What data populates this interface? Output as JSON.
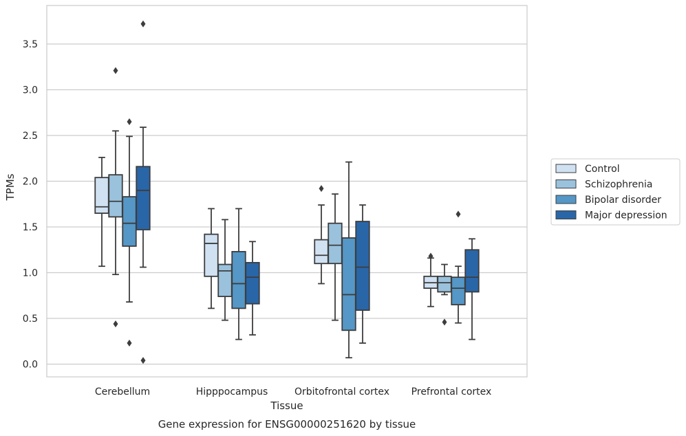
{
  "chart_data": {
    "type": "box",
    "title": "",
    "caption": "Gene expression for ENSG00000251620 by tissue",
    "xlabel": "Tissue",
    "ylabel": "TPMs",
    "ylim": [
      -0.13,
      3.92
    ],
    "yticks": [
      0.0,
      0.5,
      1.0,
      1.5,
      2.0,
      2.5,
      3.0,
      3.5
    ],
    "ytick_labels": [
      "0.0",
      "0.5",
      "1.0",
      "1.5",
      "2.0",
      "2.5",
      "3.0",
      "3.5"
    ],
    "grid": "horizontal",
    "legend_placement": "right, outside plot",
    "categories": [
      "Cerebellum",
      "Hipppocampus",
      "Orbitofrontal cortex",
      "Prefrontal cortex"
    ],
    "series": [
      {
        "name": "Control",
        "color": "#d0e1f2",
        "boxes": [
          {
            "whislo": 1.07,
            "q1": 1.65,
            "med": 1.72,
            "q3": 2.04,
            "whishi": 2.26,
            "fliers": []
          },
          {
            "whislo": 0.61,
            "q1": 0.96,
            "med": 1.32,
            "q3": 1.42,
            "whishi": 1.7,
            "fliers": []
          },
          {
            "whislo": 0.88,
            "q1": 1.1,
            "med": 1.19,
            "q3": 1.36,
            "whishi": 1.74,
            "fliers": [
              1.92
            ]
          },
          {
            "whislo": 0.63,
            "q1": 0.83,
            "med": 0.89,
            "q3": 0.96,
            "whishi": 1.16,
            "fliers": [
              1.18
            ]
          }
        ]
      },
      {
        "name": "Schizophrenia",
        "color": "#9ac2dd",
        "boxes": [
          {
            "whislo": 0.98,
            "q1": 1.61,
            "med": 1.78,
            "q3": 2.07,
            "whishi": 2.55,
            "fliers": [
              3.21,
              0.44
            ]
          },
          {
            "whislo": 0.48,
            "q1": 0.74,
            "med": 1.02,
            "q3": 1.09,
            "whishi": 1.58,
            "fliers": []
          },
          {
            "whislo": 0.48,
            "q1": 1.1,
            "med": 1.3,
            "q3": 1.54,
            "whishi": 1.86,
            "fliers": []
          },
          {
            "whislo": 0.76,
            "q1": 0.79,
            "med": 0.89,
            "q3": 0.96,
            "whishi": 1.09,
            "fliers": [
              0.46
            ]
          }
        ]
      },
      {
        "name": "Bipolar disorder",
        "color": "#5597c6",
        "boxes": [
          {
            "whislo": 0.68,
            "q1": 1.29,
            "med": 1.54,
            "q3": 1.83,
            "whishi": 2.49,
            "fliers": [
              2.65,
              0.23
            ]
          },
          {
            "whislo": 0.27,
            "q1": 0.61,
            "med": 0.88,
            "q3": 1.23,
            "whishi": 1.7,
            "fliers": []
          },
          {
            "whislo": 0.07,
            "q1": 0.37,
            "med": 0.76,
            "q3": 1.38,
            "whishi": 2.21,
            "fliers": []
          },
          {
            "whislo": 0.45,
            "q1": 0.65,
            "med": 0.83,
            "q3": 0.95,
            "whishi": 1.07,
            "fliers": [
              1.64
            ]
          }
        ]
      },
      {
        "name": "Major depression",
        "color": "#2966a8",
        "boxes": [
          {
            "whislo": 1.06,
            "q1": 1.47,
            "med": 1.9,
            "q3": 2.16,
            "whishi": 2.59,
            "fliers": [
              3.72,
              0.04
            ]
          },
          {
            "whislo": 0.32,
            "q1": 0.66,
            "med": 0.95,
            "q3": 1.11,
            "whishi": 1.34,
            "fliers": []
          },
          {
            "whislo": 0.23,
            "q1": 0.59,
            "med": 1.06,
            "q3": 1.56,
            "whishi": 1.74,
            "fliers": []
          },
          {
            "whislo": 0.27,
            "q1": 0.79,
            "med": 0.95,
            "q3": 1.25,
            "whishi": 1.37,
            "fliers": []
          }
        ]
      }
    ]
  }
}
